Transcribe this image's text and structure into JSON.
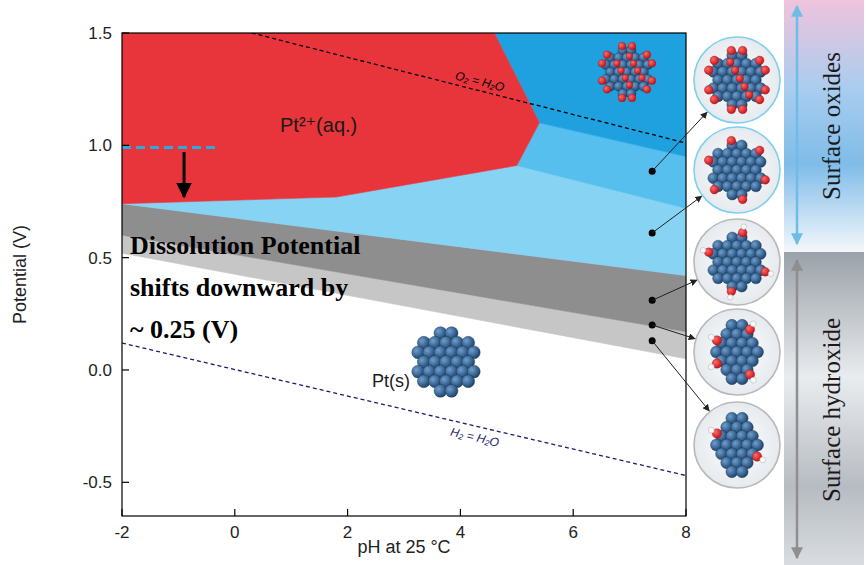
{
  "chart_data": {
    "type": "area",
    "x_label": "pH at 25 °C",
    "y_label": "Potential (V)",
    "xlim": [
      -2,
      8
    ],
    "xticks": [
      -2,
      0,
      2,
      4,
      6,
      8
    ],
    "ylim": [
      -0.65,
      1.5
    ],
    "yticks": [
      -0.5,
      {
        "value": 0,
        "label": "0.0"
      },
      0.5,
      {
        "value": 1,
        "label": "1.0"
      },
      1.5
    ],
    "grid": false,
    "series": [
      {
        "type": "area",
        "color": "#c6c6c6",
        "x": [
          -2,
          8,
          8,
          -2
        ],
        "values": [
          0.6,
          0.17,
          0.05,
          0.52
        ]
      },
      {
        "type": "area",
        "color": "#8e8e8e",
        "x": [
          -2,
          8,
          8,
          -2
        ],
        "values": [
          0.74,
          0.42,
          0.17,
          0.6
        ]
      },
      {
        "type": "area",
        "color": "#86d3f4",
        "x": [
          -2,
          1.8,
          5.0,
          8,
          8
        ],
        "values": [
          0.74,
          0.77,
          0.91,
          0.72,
          0.42
        ]
      },
      {
        "type": "area",
        "color": "#56bfee",
        "x": [
          5.0,
          5.4,
          8,
          8
        ],
        "values": [
          0.91,
          1.1,
          0.95,
          0.72
        ]
      },
      {
        "type": "area",
        "color": "#1fa1e0",
        "x": [
          4.6,
          8,
          8,
          5.4
        ],
        "values": [
          1.5,
          1.5,
          0.95,
          1.1
        ]
      },
      {
        "type": "area",
        "color": "#e8353b",
        "x": [
          -2,
          4.6,
          5.4,
          5.0,
          1.8,
          -2
        ],
        "values": [
          1.5,
          1.5,
          1.1,
          0.91,
          0.77,
          0.74
        ]
      },
      {
        "type": "line",
        "color": "#000000",
        "line_style": "dashed",
        "x": [
          0.3,
          8
        ],
        "values": [
          1.5,
          1.01
        ]
      },
      {
        "type": "line",
        "color": "#1c1c6e",
        "line_style": "dashed",
        "x": [
          -2,
          8
        ],
        "values": [
          0.12,
          -0.47
        ]
      },
      {
        "type": "line",
        "color": "#29abe2",
        "line_style": "dashed",
        "x": [
          -2,
          -0.35
        ],
        "values": [
          0.99,
          0.99
        ]
      },
      {
        "type": "line",
        "color": "#000000",
        "line_style": "solid",
        "marker": "arrow",
        "x": [
          -0.9,
          -0.9
        ],
        "values": [
          0.97,
          0.77
        ]
      },
      {
        "type": "scatter",
        "color": "#000000",
        "marker": "circle",
        "x": [
          7.4,
          7.4,
          7.4,
          7.4,
          7.4
        ],
        "values": [
          0.885,
          0.61,
          0.31,
          0.2,
          0.13
        ]
      }
    ],
    "annotations": [
      {
        "text": "O₂ = H₂O"
      },
      {
        "text": "H₂ = H₂O"
      },
      {
        "text": "Pt²⁺(aq.)"
      },
      {
        "text": "Pt(s)"
      },
      {
        "text": "Dissolution Potential"
      },
      {
        "text": "shifts downward by"
      },
      {
        "text": "~ 0.25 (V)"
      }
    ],
    "side_labels": [
      "Surface oxides",
      "Surface hydroxide"
    ]
  }
}
